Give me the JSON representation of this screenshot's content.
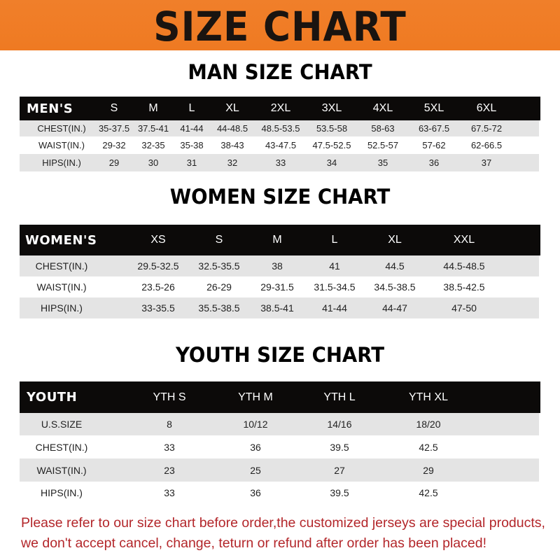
{
  "banner": {
    "title": "SIZE CHART",
    "color": "#ef7a22"
  },
  "men": {
    "title": "MAN SIZE CHART",
    "header": [
      "MEN'S",
      "S",
      "M",
      "L",
      "XL",
      "2XL",
      "3XL",
      "4XL",
      "5XL",
      "6XL"
    ],
    "rows": [
      [
        "CHEST(IN.)",
        "35-37.5",
        "37.5-41",
        "41-44",
        "44-48.5",
        "48.5-53.5",
        "53.5-58",
        "58-63",
        "63-67.5",
        "67.5-72"
      ],
      [
        "WAIST(IN.)",
        "29-32",
        "32-35",
        "35-38",
        "38-43",
        "43-47.5",
        "47.5-52.5",
        "52.5-57",
        "57-62",
        "62-66.5"
      ],
      [
        "HIPS(IN.)",
        "29",
        "30",
        "31",
        "32",
        "33",
        "34",
        "35",
        "36",
        "37"
      ]
    ]
  },
  "women": {
    "title": "WOMEN SIZE CHART",
    "header": [
      "WOMEN'S",
      "XS",
      "S",
      "M",
      "L",
      "XL",
      "XXL"
    ],
    "rows": [
      [
        "CHEST(IN.)",
        "29.5-32.5",
        "32.5-35.5",
        "38",
        "41",
        "44.5",
        "44.5-48.5"
      ],
      [
        "WAIST(IN.)",
        "23.5-26",
        "26-29",
        "29-31.5",
        "31.5-34.5",
        "34.5-38.5",
        "38.5-42.5"
      ],
      [
        "HIPS(IN.)",
        "33-35.5",
        "35.5-38.5",
        "38.5-41",
        "41-44",
        "44-47",
        "47-50"
      ]
    ]
  },
  "youth": {
    "title": "YOUTH SIZE CHART",
    "header": [
      "YOUTH",
      "YTH S",
      "YTH M",
      "YTH L",
      "YTH XL"
    ],
    "rows": [
      [
        "U.S.SIZE",
        "8",
        "10/12",
        "14/16",
        "18/20"
      ],
      [
        "CHEST(IN.)",
        "33",
        "36",
        "39.5",
        "42.5"
      ],
      [
        "WAIST(IN.)",
        "23",
        "25",
        "27",
        "29"
      ],
      [
        "HIPS(IN.)",
        "33",
        "36",
        "39.5",
        "42.5"
      ]
    ]
  },
  "footer": {
    "line1": "Please refer to our size chart before order,the customized jerseys are special products,",
    "line2": "we don't accept cancel, change, teturn or refund after order has been placed!",
    "color": "#b3262a"
  }
}
